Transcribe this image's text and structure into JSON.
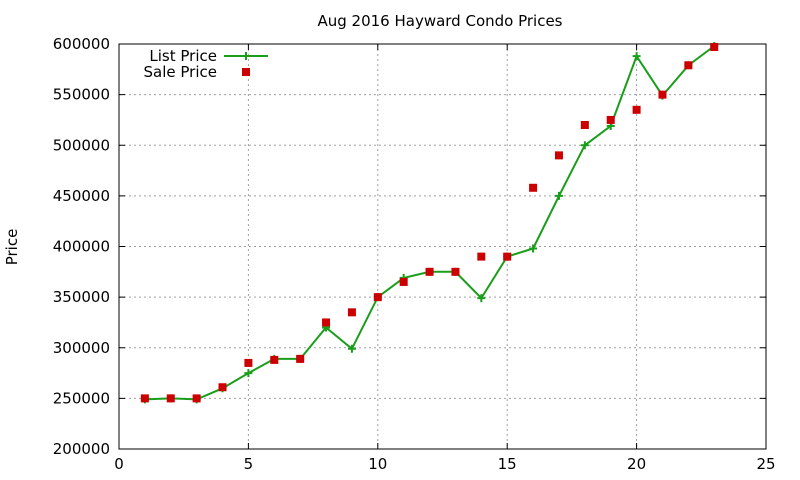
{
  "chart_data": {
    "type": "line",
    "title": "Aug 2016 Hayward Condo Prices",
    "xlabel": "",
    "ylabel": "Price",
    "xlim": [
      0,
      25
    ],
    "ylim": [
      200000,
      600000
    ],
    "xticks": [
      0,
      5,
      10,
      15,
      20,
      25
    ],
    "yticks": [
      200000,
      250000,
      300000,
      350000,
      400000,
      450000,
      500000,
      550000,
      600000
    ],
    "grid": true,
    "legend_position": "top-left",
    "series": [
      {
        "name": "List Price",
        "style": "line+cross",
        "color": "#1a9e1a",
        "x": [
          1,
          2,
          3,
          4,
          5,
          6,
          7,
          8,
          9,
          10,
          11,
          12,
          13,
          14,
          15,
          16,
          17,
          18,
          19,
          20,
          21,
          22,
          23
        ],
        "y": [
          249000,
          250000,
          249000,
          260000,
          275000,
          289000,
          289000,
          320000,
          299000,
          350000,
          369000,
          375000,
          375000,
          349000,
          390000,
          398000,
          450000,
          500000,
          519000,
          588000,
          549000,
          579000,
          598000
        ]
      },
      {
        "name": "Sale Price",
        "style": "square",
        "color": "#cc0000",
        "x": [
          1,
          2,
          3,
          4,
          5,
          6,
          7,
          8,
          9,
          10,
          11,
          12,
          13,
          14,
          15,
          16,
          17,
          18,
          19,
          20,
          21,
          22,
          23
        ],
        "y": [
          250000,
          250000,
          250000,
          261000,
          285000,
          288000,
          289000,
          325000,
          335000,
          350000,
          365000,
          375000,
          375000,
          390000,
          390000,
          458000,
          490000,
          520000,
          525000,
          535000,
          550000,
          579000,
          597000
        ]
      }
    ]
  }
}
